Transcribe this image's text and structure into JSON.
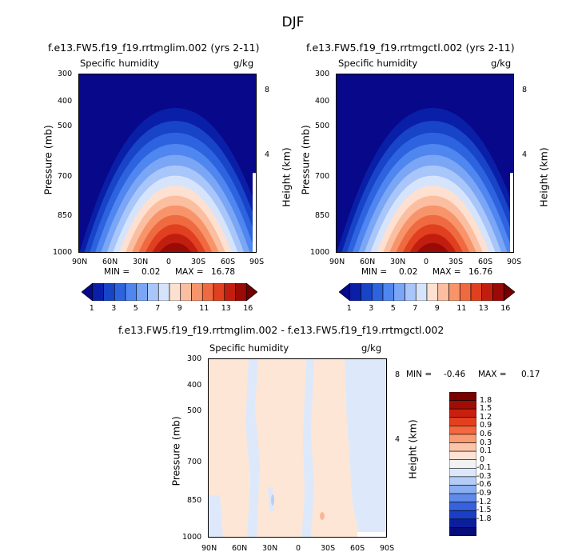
{
  "figure_title": "DJF",
  "chart_data": [
    {
      "type": "heatmap",
      "title": "f.e13.FW5.f19_f19.rrtmglim.002 (yrs 2-11)",
      "left_string": "Specific humidity",
      "right_string": "g/kg",
      "ylabel": "Pressure (mb)",
      "ylabel_right": "Height (km)",
      "x_ticks": [
        "90N",
        "60N",
        "30N",
        "0",
        "30S",
        "60S",
        "90S"
      ],
      "y_ticks": [
        "300",
        "400",
        "500",
        "700",
        "850",
        "1000"
      ],
      "y_ticks_right": [
        "8",
        "4"
      ],
      "stats": {
        "min_label": "MIN =",
        "min": "0.02",
        "max_label": "MAX =",
        "max": "16.78"
      },
      "colorbar_labels": [
        "1",
        "3",
        "5",
        "7",
        "9",
        "11",
        "13",
        "16"
      ],
      "colorbar_levels": [
        1,
        2,
        3,
        4,
        5,
        6,
        7,
        8,
        9,
        10,
        11,
        12,
        13,
        14,
        16
      ]
    },
    {
      "type": "heatmap",
      "title": "f.e13.FW5.f19_f19.rrtmgctl.002 (yrs 2-11)",
      "left_string": "Specific humidity",
      "right_string": "g/kg",
      "ylabel": "Pressure (mb)",
      "ylabel_right": "Height (km)",
      "x_ticks": [
        "90N",
        "60N",
        "30N",
        "0",
        "30S",
        "60S",
        "90S"
      ],
      "y_ticks": [
        "300",
        "400",
        "500",
        "700",
        "850",
        "1000"
      ],
      "y_ticks_right": [
        "8",
        "4"
      ],
      "stats": {
        "min_label": "MIN =",
        "min": "0.02",
        "max_label": "MAX =",
        "max": "16.76"
      },
      "colorbar_labels": [
        "1",
        "3",
        "5",
        "7",
        "9",
        "11",
        "13",
        "16"
      ],
      "colorbar_levels": [
        1,
        2,
        3,
        4,
        5,
        6,
        7,
        8,
        9,
        10,
        11,
        12,
        13,
        14,
        16
      ]
    },
    {
      "type": "heatmap",
      "title": "f.e13.FW5.f19_f19.rrtmglim.002 - f.e13.FW5.f19_f19.rrtmgctl.002",
      "left_string": "Specific humidity",
      "right_string": "g/kg",
      "ylabel": "Pressure (mb)",
      "ylabel_right": "Height (km)",
      "x_ticks": [
        "90N",
        "60N",
        "30N",
        "0",
        "30S",
        "60S",
        "90S"
      ],
      "y_ticks": [
        "300",
        "400",
        "500",
        "700",
        "850",
        "1000"
      ],
      "y_ticks_right": [
        "8",
        "4"
      ],
      "stats": {
        "min_label": "MIN =",
        "min": "-0.46",
        "max_label": "MAX =",
        "max": "0.17"
      },
      "colorbar_labels": [
        "1.8",
        "1.5",
        "1.2",
        "0.9",
        "0.6",
        "0.3",
        "0.1",
        "0",
        "-0.1",
        "-0.3",
        "-0.6",
        "-0.9",
        "-1.2",
        "-1.5",
        "-1.8"
      ]
    }
  ],
  "colors": {
    "abs_scale": [
      "#08088a",
      "#0a1fa8",
      "#1844c8",
      "#2e63e0",
      "#4f86ef",
      "#7aa6f5",
      "#a8c6f9",
      "#d6e4fb",
      "#fde0d0",
      "#fbbea0",
      "#f7946a",
      "#ef6a40",
      "#e0401f",
      "#c21e10",
      "#9a0a06",
      "#700000"
    ],
    "diff_scale": [
      "#7a0000",
      "#a00d05",
      "#c8200e",
      "#e4401f",
      "#f4683f",
      "#fa9a72",
      "#fcc4a8",
      "#fee3d4",
      "#f2f2f2",
      "#dbe8fb",
      "#b4cdf6",
      "#8aaef1",
      "#5f8aea",
      "#3762dd",
      "#1a3fc4",
      "#0b1f9c",
      "#060c78"
    ],
    "diff_pos": "#fde6d6",
    "diff_neg": "#dde9fa"
  }
}
